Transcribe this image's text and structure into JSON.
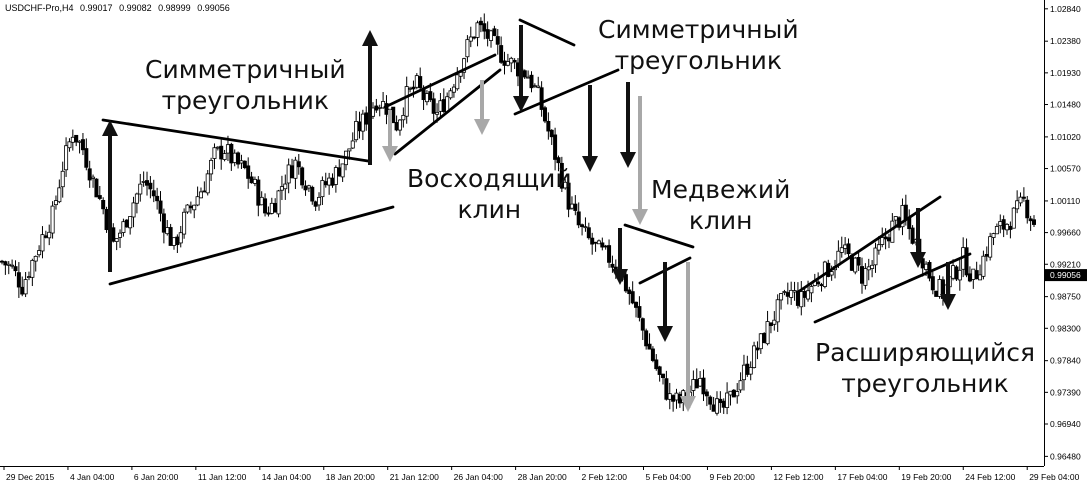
{
  "header": {
    "symbol": "USDCHF-Pro,H4",
    "open": "0.99017",
    "high": "0.99082",
    "low": "0.98999",
    "close": "0.99056"
  },
  "annotations": {
    "sym_triangle_1_line1": "Симметричный",
    "sym_triangle_1_line2": "треугольник",
    "rising_wedge_line1": "Восходящий",
    "rising_wedge_line2": "клин",
    "sym_triangle_2_line1": "Симметричный",
    "sym_triangle_2_line2": "треугольник",
    "bear_wedge_line1": "Медвежий",
    "bear_wedge_line2": "клин",
    "expanding_line1": "Расширяющийся",
    "expanding_line2": "треугольник"
  },
  "chart_data": {
    "type": "candlestick",
    "y_tick_labels": [
      "1.02840",
      "1.02380",
      "1.01930",
      "1.01480",
      "1.01020",
      "1.00570",
      "1.00110",
      "0.99660",
      "0.99210",
      "0.98750",
      "0.98300",
      "0.97840",
      "0.97390",
      "0.96940",
      "0.96480"
    ],
    "ylim": [
      0.964,
      1.0288
    ],
    "x_tick_labels": [
      "29 Dec 2015",
      "4 Jan 04:00",
      "6 Jan 20:00",
      "11 Jan 12:00",
      "14 Jan 04:00",
      "18 Jan 20:00",
      "21 Jan 12:00",
      "26 Jan 04:00",
      "28 Jan 20:00",
      "2 Feb 12:00",
      "5 Feb 04:00",
      "9 Feb 20:00",
      "12 Feb 12:00",
      "17 Feb 04:00",
      "19 Feb 20:00",
      "24 Feb 12:00",
      "29 Feb 04:00"
    ],
    "current_price": "0.99056",
    "price_path": [
      [
        0,
        0.9925
      ],
      [
        3,
        0.9915
      ],
      [
        6,
        0.989
      ],
      [
        9,
        0.9925
      ],
      [
        12,
        0.996
      ],
      [
        15,
        0.999
      ],
      [
        18,
        1.006
      ],
      [
        21,
        1.011
      ],
      [
        24,
        1.0085
      ],
      [
        27,
        1.004
      ],
      [
        30,
        1.0
      ],
      [
        33,
        0.995
      ],
      [
        36,
        0.9975
      ],
      [
        39,
        1.001
      ],
      [
        42,
        1.004
      ],
      [
        45,
        1.002
      ],
      [
        48,
        0.998
      ],
      [
        51,
        0.9945
      ],
      [
        54,
        0.9985
      ],
      [
        57,
        1.001
      ],
      [
        60,
        1.0035
      ],
      [
        63,
        1.0075
      ],
      [
        66,
        1.0085
      ],
      [
        69,
        1.0065
      ],
      [
        72,
        1.0055
      ],
      [
        75,
        1.003
      ],
      [
        78,
        0.9995
      ],
      [
        81,
        1.001
      ],
      [
        84,
        1.0045
      ],
      [
        87,
        1.0065
      ],
      [
        90,
        1.004
      ],
      [
        93,
        1.0015
      ],
      [
        96,
        1.0035
      ],
      [
        99,
        1.005
      ],
      [
        102,
        1.0075
      ],
      [
        105,
        1.011
      ],
      [
        108,
        1.013
      ],
      [
        111,
        1.0155
      ],
      [
        114,
        1.0145
      ],
      [
        117,
        1.012
      ],
      [
        120,
        1.016
      ],
      [
        123,
        1.0175
      ],
      [
        126,
        1.015
      ],
      [
        129,
        1.0135
      ],
      [
        132,
        1.016
      ],
      [
        135,
        1.0195
      ],
      [
        138,
        1.023
      ],
      [
        141,
        1.026
      ],
      [
        144,
        1.0245
      ],
      [
        147,
        1.0225
      ],
      [
        150,
        1.021
      ],
      [
        153,
        1.02
      ],
      [
        156,
        1.019
      ],
      [
        159,
        1.016
      ],
      [
        162,
        1.011
      ],
      [
        165,
        1.006
      ],
      [
        168,
        1.001
      ],
      [
        171,
        0.9975
      ],
      [
        174,
        0.9955
      ],
      [
        177,
        0.994
      ],
      [
        180,
        0.993
      ],
      [
        183,
        0.991
      ],
      [
        186,
        0.988
      ],
      [
        189,
        0.984
      ],
      [
        192,
        0.98
      ],
      [
        195,
        0.976
      ],
      [
        198,
        0.973
      ],
      [
        201,
        0.9725
      ],
      [
        204,
        0.974
      ],
      [
        207,
        0.976
      ],
      [
        210,
        0.9735
      ],
      [
        213,
        0.971
      ],
      [
        216,
        0.973
      ],
      [
        219,
        0.976
      ],
      [
        222,
        0.9785
      ],
      [
        225,
        0.981
      ],
      [
        228,
        0.984
      ],
      [
        231,
        0.9865
      ],
      [
        234,
        0.988
      ],
      [
        237,
        0.987
      ],
      [
        240,
        0.989
      ],
      [
        243,
        0.9905
      ],
      [
        246,
        0.992
      ],
      [
        249,
        0.994
      ],
      [
        252,
        0.9925
      ],
      [
        255,
        0.9905
      ],
      [
        258,
        0.992
      ],
      [
        261,
        0.995
      ],
      [
        264,
        0.9975
      ],
      [
        267,
        0.999
      ],
      [
        270,
        0.996
      ],
      [
        273,
        0.993
      ],
      [
        276,
        0.9895
      ],
      [
        279,
        0.988
      ],
      [
        282,
        0.9905
      ],
      [
        285,
        0.993
      ],
      [
        288,
        0.99
      ],
      [
        291,
        0.993
      ],
      [
        294,
        0.9965
      ],
      [
        297,
        0.9975
      ],
      [
        300,
        0.999
      ],
      [
        303,
        1.001
      ],
      [
        306,
        0.998
      ]
    ],
    "grid": false,
    "legend": "none"
  }
}
